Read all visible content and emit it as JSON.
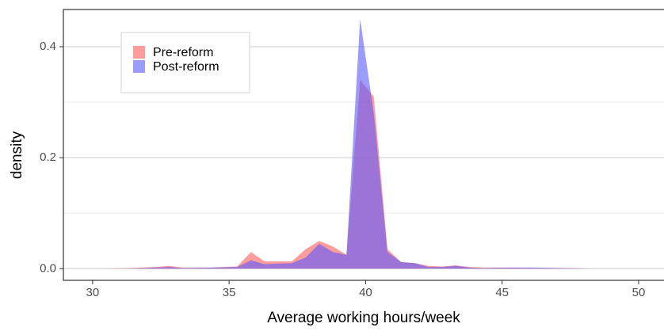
{
  "chart_data": {
    "type": "area",
    "x_label": "Average working hours/week",
    "y_label": "density",
    "x": [
      30.3,
      31.3,
      32.3,
      32.8,
      33.3,
      34.3,
      35.3,
      35.8,
      36.3,
      37.3,
      37.8,
      38.3,
      38.8,
      39.3,
      39.8,
      40.3,
      40.8,
      41.3,
      41.8,
      42.3,
      42.8,
      43.3,
      43.8,
      44.3,
      45.3,
      46.3,
      47.3,
      48.3,
      49.8
    ],
    "series": [
      {
        "name": "Pre-reform",
        "color": "#ff5a5a",
        "values": [
          0,
          0.001,
          0.003,
          0.005,
          0.002,
          0.002,
          0.004,
          0.03,
          0.013,
          0.013,
          0.035,
          0.05,
          0.04,
          0.025,
          0.34,
          0.31,
          0.035,
          0.012,
          0.01,
          0.005,
          0.004,
          0.006,
          0.003,
          0.002,
          0.002,
          0.001,
          0.001,
          0,
          0
        ]
      },
      {
        "name": "Post-reform",
        "color": "#5a5aff",
        "values": [
          0,
          0,
          0.002,
          0.003,
          0.001,
          0.002,
          0.003,
          0.015,
          0.008,
          0.01,
          0.02,
          0.045,
          0.03,
          0.025,
          0.45,
          0.28,
          0.03,
          0.012,
          0.01,
          0.003,
          0.003,
          0.005,
          0.002,
          0.001,
          0.002,
          0.002,
          0.001,
          0,
          0
        ]
      }
    ],
    "xlim": [
      28.93,
      50.93
    ],
    "xticks": [
      30,
      35,
      40,
      45,
      50
    ],
    "ylim": [
      -0.021,
      0.467
    ],
    "yticks": [
      {
        "value": 0,
        "label": "0.0"
      },
      {
        "value": 0.2,
        "label": "0.2"
      },
      {
        "value": 0.4,
        "label": "0.4"
      }
    ],
    "y_minor_grid": [
      0.1,
      0.3
    ],
    "grid": true,
    "legend_position": "top-left"
  }
}
